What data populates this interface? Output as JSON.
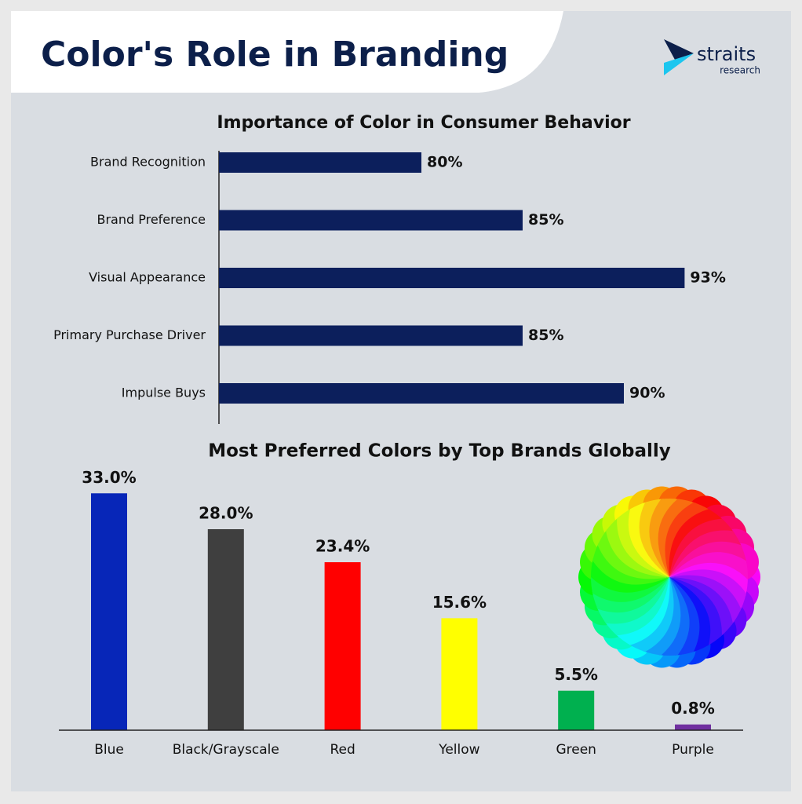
{
  "header": {
    "title": "Color's Role in Branding",
    "logo": {
      "name": "straits",
      "sub": "research"
    }
  },
  "chart_data": [
    {
      "type": "bar",
      "orientation": "horizontal",
      "title": "Importance of Color in Consumer Behavior",
      "categories": [
        "Brand Recognition",
        "Brand Preference",
        "Visual Appearance",
        "Primary Purchase Driver",
        "Impulse Buys"
      ],
      "values": [
        80,
        85,
        93,
        85,
        90
      ],
      "value_labels": [
        "80%",
        "85%",
        "93%",
        "85%",
        "90%"
      ],
      "color": "#0c1f5c",
      "xlim": [
        70,
        95
      ]
    },
    {
      "type": "bar",
      "orientation": "vertical",
      "title": "Most Preferred Colors by Top Brands Globally",
      "categories": [
        "Blue",
        "Black/Grayscale",
        "Red",
        "Yellow",
        "Green",
        "Purple"
      ],
      "values": [
        33.0,
        28.0,
        23.4,
        15.6,
        5.5,
        0.8
      ],
      "value_labels": [
        "33.0%",
        "28.0%",
        "23.4%",
        "15.6%",
        "5.5%",
        "0.8%"
      ],
      "colors": [
        "#0726b8",
        "#3f3f3f",
        "#ff0000",
        "#ffff00",
        "#00b04f",
        "#7030a0"
      ],
      "ylim": [
        0,
        35
      ]
    }
  ]
}
